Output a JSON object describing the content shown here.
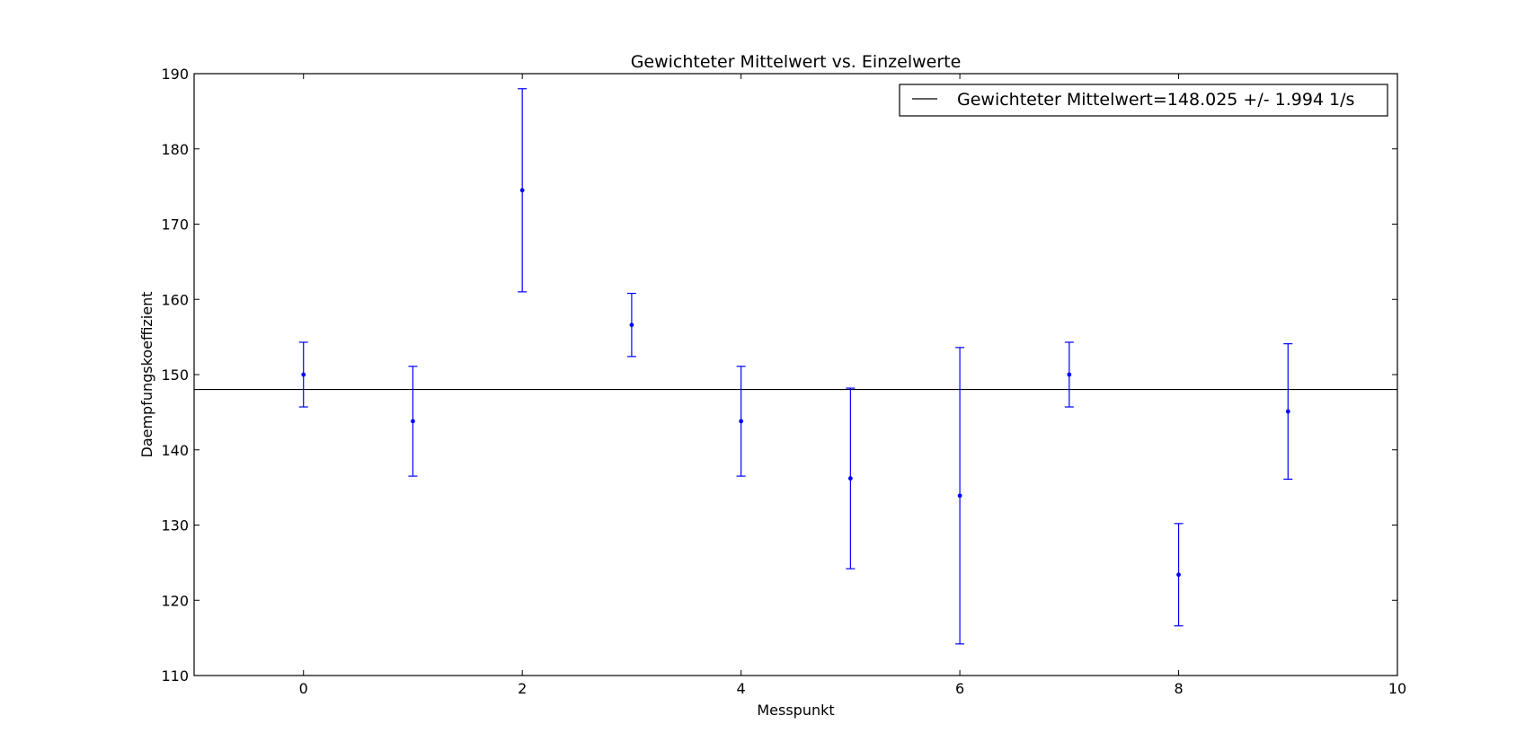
{
  "chart_data": {
    "type": "scatter",
    "title": "Gewichteter Mittelwert vs. Einzelwerte",
    "xlabel": "Messpunkt",
    "ylabel": "Daempfungskoeffizient",
    "xlim": [
      -1,
      10
    ],
    "ylim": [
      110,
      190
    ],
    "xticks": [
      0,
      2,
      4,
      6,
      8,
      10
    ],
    "yticks": [
      110,
      120,
      130,
      140,
      150,
      160,
      170,
      180,
      190
    ],
    "grid": false,
    "legend": {
      "position": "top-right",
      "entries": [
        "Gewichteter Mittelwert=148.025 +/- 1.994 1/s"
      ]
    },
    "hline": {
      "y": 148.025,
      "color": "#000000"
    },
    "series": [
      {
        "color": "#0000ff",
        "x": [
          0,
          1,
          2,
          3,
          4,
          5,
          6,
          7,
          8,
          9
        ],
        "y": [
          150.0,
          143.8,
          174.5,
          156.6,
          143.8,
          136.2,
          133.9,
          150.0,
          123.4,
          145.1
        ],
        "yerr": [
          4.3,
          7.3,
          13.5,
          4.2,
          7.3,
          12.0,
          19.7,
          4.3,
          6.8,
          9.0
        ]
      }
    ]
  }
}
